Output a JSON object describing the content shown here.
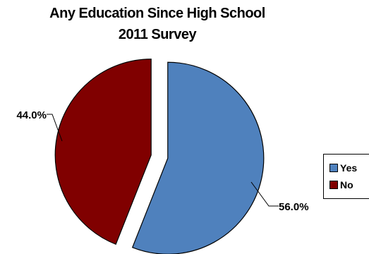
{
  "chart_data": {
    "type": "pie",
    "title": "Any Education Since High School",
    "subtitle": "2011 Survey",
    "slices": [
      {
        "label": "Yes",
        "value": 56.0,
        "data_label": "56.0%",
        "color": "#4f81bd"
      },
      {
        "label": "No",
        "value": 44.0,
        "data_label": "44.0%",
        "color": "#800000"
      }
    ],
    "legend_position": "right",
    "exploded": true
  }
}
